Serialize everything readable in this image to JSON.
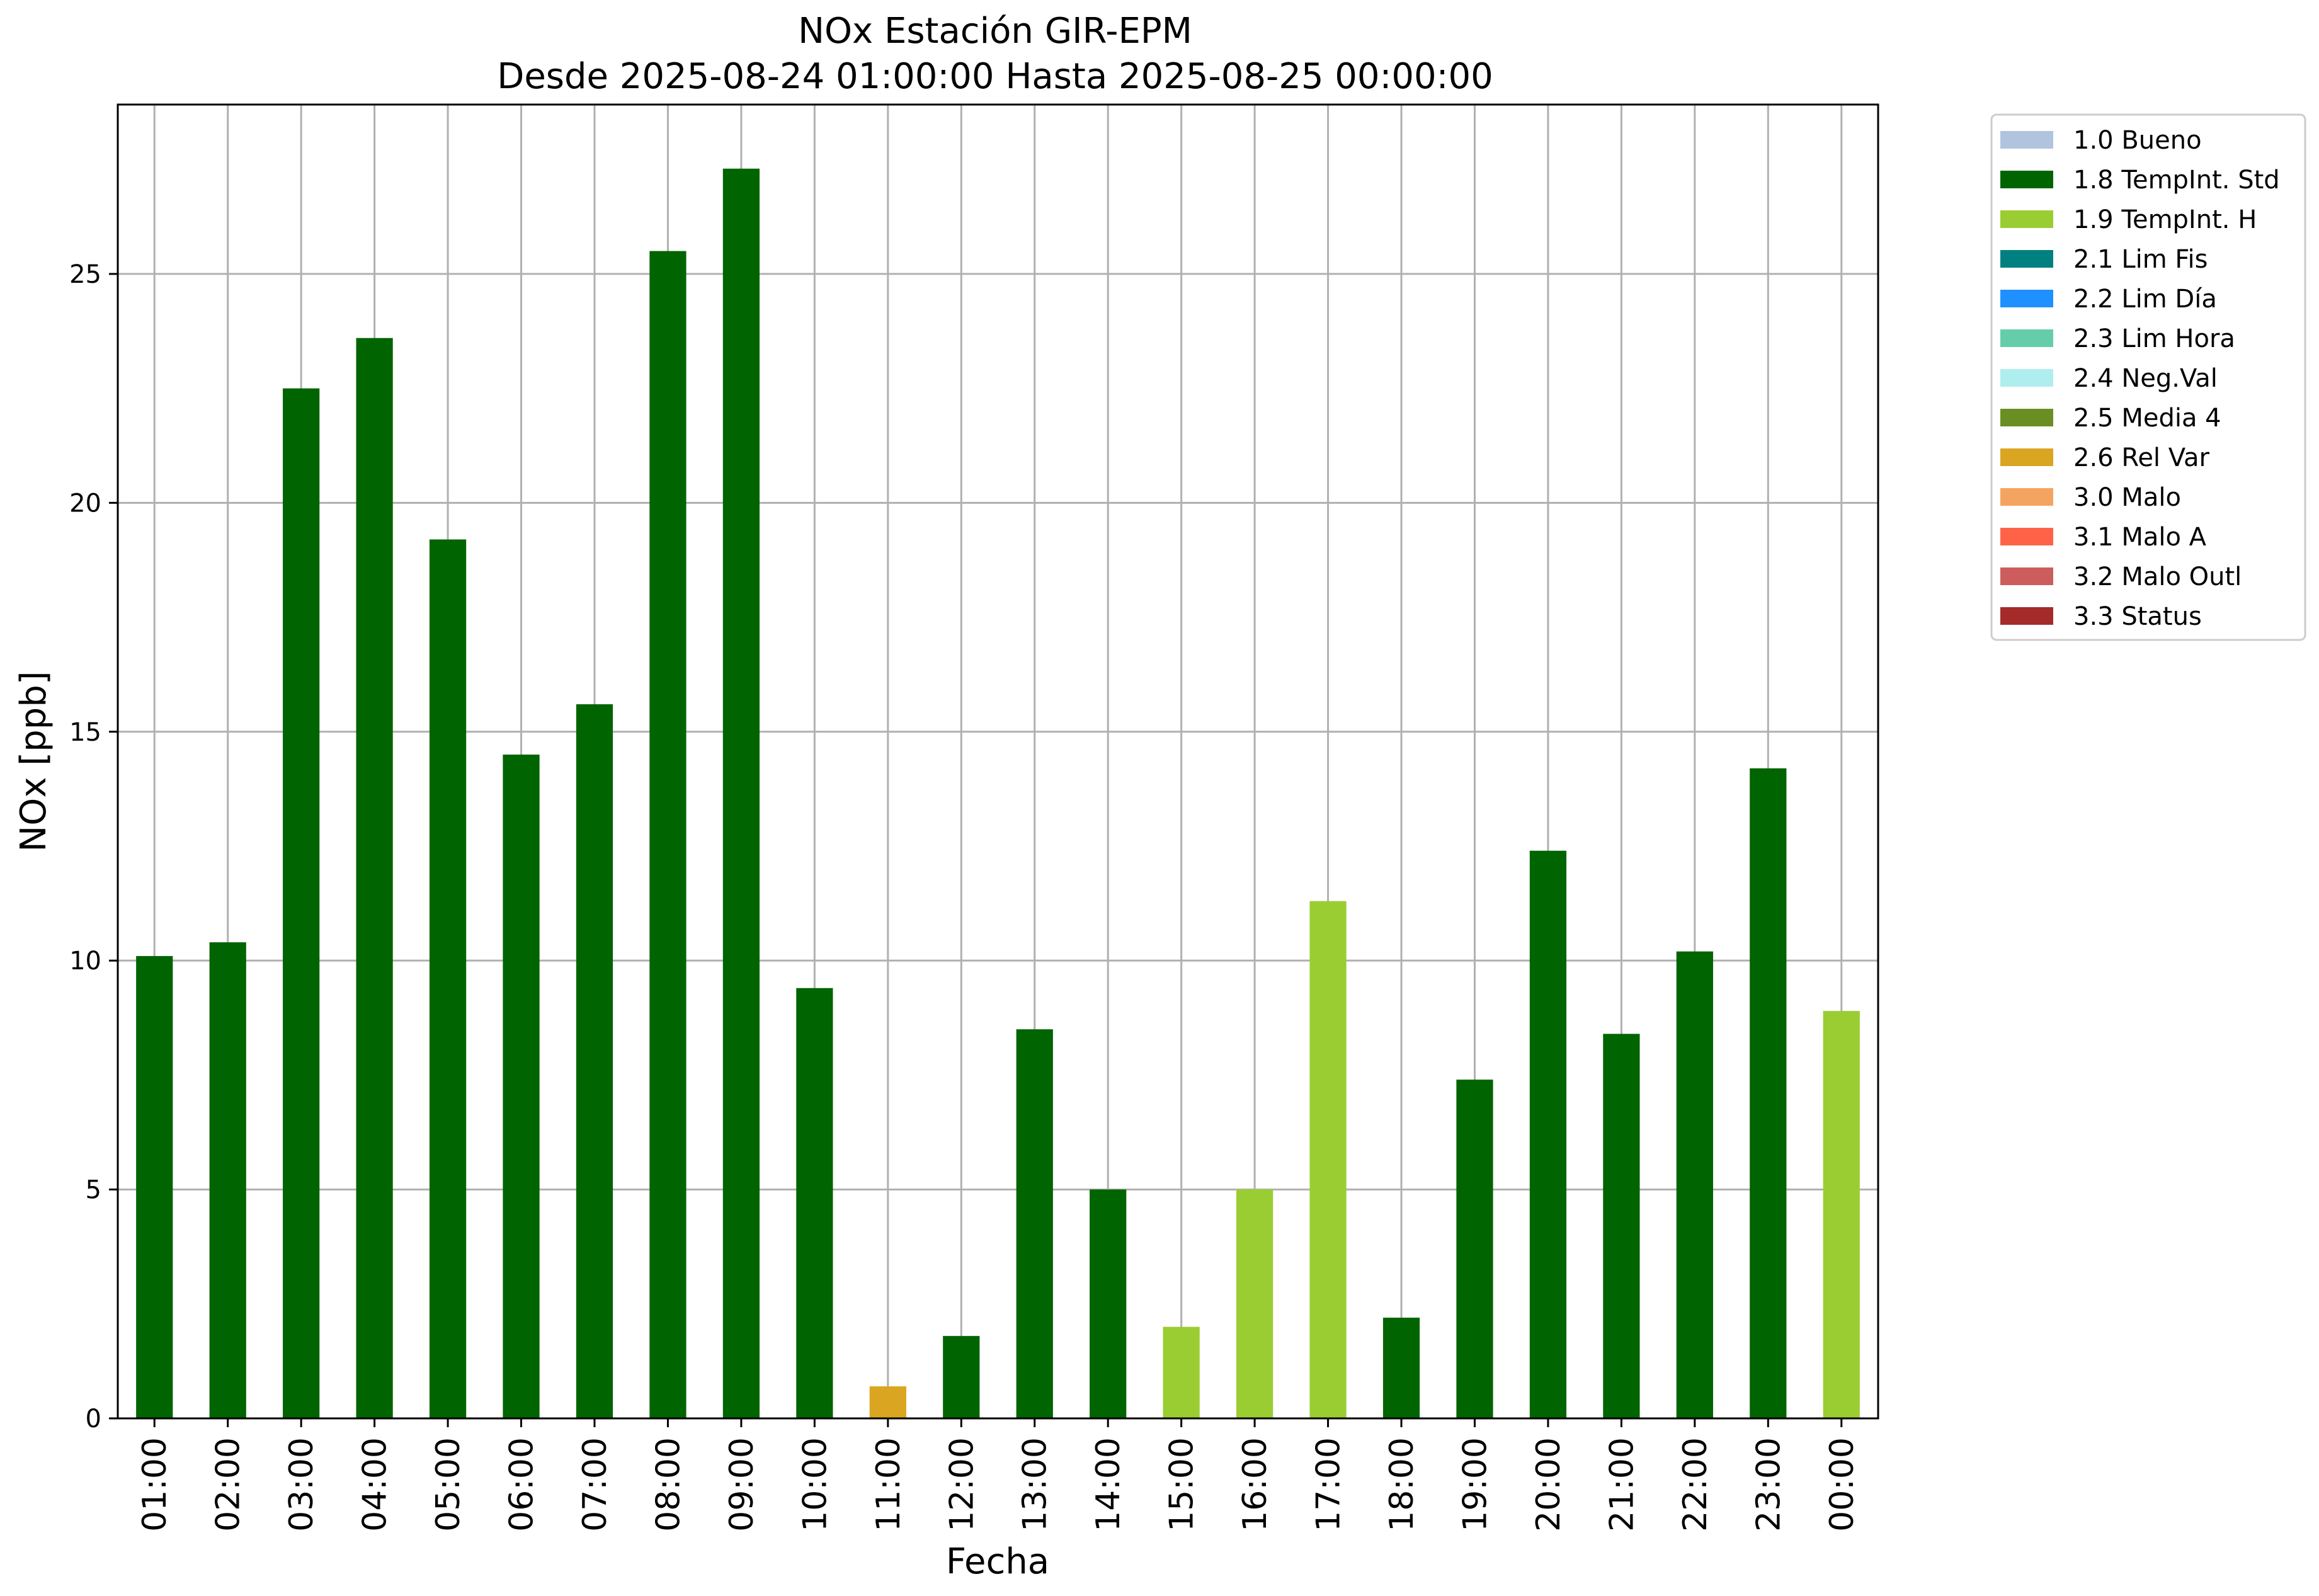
{
  "chart_data": {
    "type": "bar",
    "title_line1": "NOx Estación GIR-EPM",
    "title_line2": "Desde 2025-08-24 01:00:00 Hasta 2025-08-25 00:00:00",
    "xlabel": "Fecha",
    "ylabel": "NOx [ppb]",
    "ylim": [
      0,
      28.7
    ],
    "yticks": [
      0,
      5,
      10,
      15,
      20,
      25
    ],
    "grid": true,
    "legend_position": "outside-right",
    "categories": [
      "01:00",
      "02:00",
      "03:00",
      "04:00",
      "05:00",
      "06:00",
      "07:00",
      "08:00",
      "09:00",
      "10:00",
      "11:00",
      "12:00",
      "13:00",
      "14:00",
      "15:00",
      "16:00",
      "17:00",
      "18:00",
      "19:00",
      "20:00",
      "21:00",
      "22:00",
      "23:00",
      "00:00"
    ],
    "values": [
      10.1,
      10.4,
      22.5,
      23.6,
      19.2,
      14.5,
      15.6,
      25.5,
      27.3,
      9.4,
      0.7,
      1.8,
      8.5,
      5.0,
      2.0,
      5.0,
      11.3,
      2.2,
      7.4,
      12.4,
      8.4,
      10.2,
      14.2,
      8.9
    ],
    "flags": [
      "1.8 TempInt. Std",
      "1.8 TempInt. Std",
      "1.8 TempInt. Std",
      "1.8 TempInt. Std",
      "1.8 TempInt. Std",
      "1.8 TempInt. Std",
      "1.8 TempInt. Std",
      "1.8 TempInt. Std",
      "1.8 TempInt. Std",
      "1.8 TempInt. Std",
      "2.6 Rel Var",
      "1.8 TempInt. Std",
      "1.8 TempInt. Std",
      "1.8 TempInt. Std",
      "1.9 TempInt. H",
      "1.9 TempInt. H",
      "1.9 TempInt. H",
      "1.8 TempInt. Std",
      "1.8 TempInt. Std",
      "1.8 TempInt. Std",
      "1.8 TempInt. Std",
      "1.8 TempInt. Std",
      "1.8 TempInt. Std",
      "1.9 TempInt. H"
    ],
    "legend": [
      {
        "label": "1.0 Bueno",
        "color": "#b0c4de"
      },
      {
        "label": "1.8 TempInt. Std",
        "color": "#006400"
      },
      {
        "label": "1.9 TempInt. H",
        "color": "#9acd32"
      },
      {
        "label": "2.1 Lim Fis",
        "color": "#008080"
      },
      {
        "label": "2.2 Lim Día",
        "color": "#1e90ff"
      },
      {
        "label": "2.3 Lim Hora",
        "color": "#66cdaa"
      },
      {
        "label": "2.4 Neg.Val",
        "color": "#afeeee"
      },
      {
        "label": "2.5 Media 4",
        "color": "#6b8e23"
      },
      {
        "label": "2.6 Rel Var",
        "color": "#daa520"
      },
      {
        "label": "3.0 Malo",
        "color": "#f4a460"
      },
      {
        "label": "3.1 Malo A",
        "color": "#ff6347"
      },
      {
        "label": "3.2 Malo Outl",
        "color": "#cd5c5c"
      },
      {
        "label": "3.3 Status",
        "color": "#a52a2a"
      }
    ]
  }
}
